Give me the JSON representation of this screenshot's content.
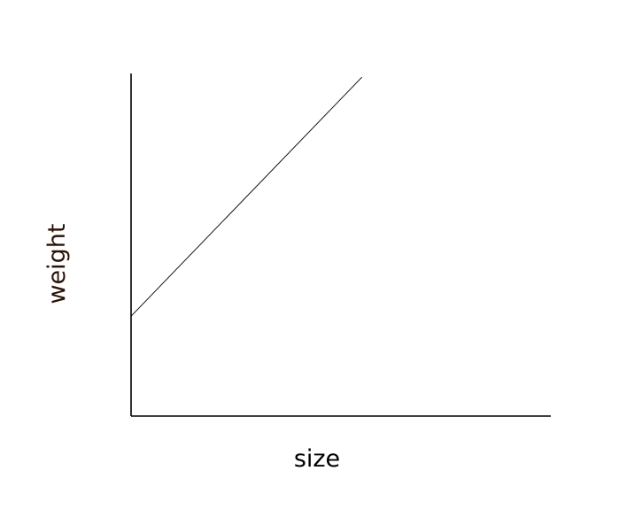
{
  "chart_data": {
    "type": "line",
    "title": "",
    "xlabel": "size",
    "ylabel": "weight",
    "xlim": [
      0,
      1
    ],
    "ylim": [
      0,
      1
    ],
    "grid": false,
    "legend": "none",
    "ticks_shown": false,
    "series": [
      {
        "x": [
          0,
          0.55
        ],
        "y": [
          0.28,
          0.95
        ]
      }
    ],
    "colors": {
      "axis": "#000000",
      "line": "#000000",
      "ylabel": "#2a1206",
      "background": "#ffffff"
    }
  }
}
